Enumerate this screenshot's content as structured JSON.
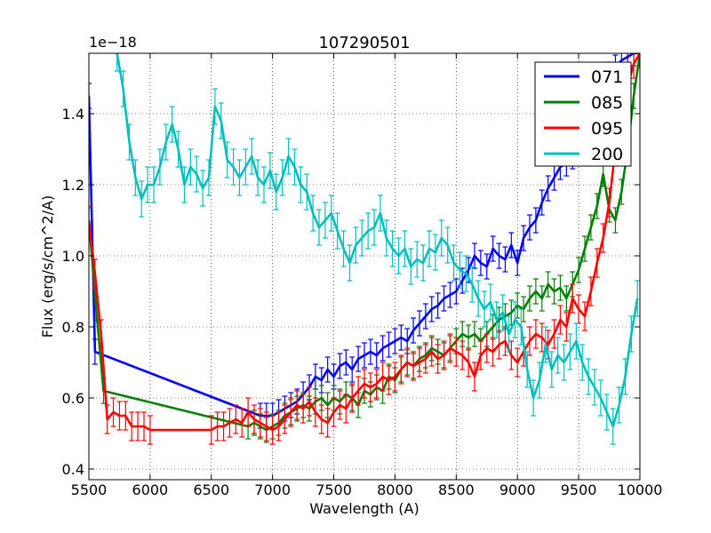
{
  "chart_data": {
    "type": "line",
    "title": "107290501",
    "xlabel": "Wavelength (A)",
    "ylabel": "Flux (erg/s/cm^2/A)",
    "y_offset_label": "1e−18",
    "xlim": [
      5500,
      10000
    ],
    "ylim": [
      0.37,
      1.57
    ],
    "x_ticks": [
      5500,
      6000,
      6500,
      7000,
      7500,
      8000,
      8500,
      9000,
      9500,
      10000
    ],
    "y_ticks": [
      0.4,
      0.6,
      0.8,
      1.0,
      1.2,
      1.4
    ],
    "grid": true,
    "legend_position": "top-right",
    "series": [
      {
        "name": "071",
        "color": "#0000ff",
        "x": [
          5500,
          5550,
          6900,
          6950,
          7000,
          7050,
          7100,
          7150,
          7200,
          7250,
          7300,
          7350,
          7400,
          7450,
          7500,
          7550,
          7600,
          7650,
          7700,
          7750,
          7800,
          7850,
          7900,
          7950,
          8000,
          8050,
          8100,
          8150,
          8200,
          8250,
          8300,
          8350,
          8400,
          8450,
          8500,
          8550,
          8600,
          8650,
          8700,
          8750,
          8800,
          8850,
          8900,
          8950,
          9000,
          9050,
          9100,
          9150,
          9200,
          9250,
          9300,
          9350,
          9400,
          9450,
          9500,
          9550,
          9600,
          9650,
          9700,
          9750,
          9800,
          9850,
          9900,
          9950,
          10000
        ],
        "y": [
          1.45,
          0.73,
          0.55,
          0.55,
          0.55,
          0.56,
          0.57,
          0.58,
          0.59,
          0.61,
          0.63,
          0.66,
          0.65,
          0.68,
          0.66,
          0.69,
          0.7,
          0.68,
          0.71,
          0.72,
          0.73,
          0.72,
          0.74,
          0.75,
          0.76,
          0.77,
          0.76,
          0.79,
          0.81,
          0.83,
          0.85,
          0.86,
          0.88,
          0.89,
          0.9,
          0.93,
          0.96,
          1.0,
          0.98,
          0.97,
          1.02,
          1.0,
          0.99,
          1.03,
          0.98,
          1.05,
          1.08,
          1.1,
          1.15,
          1.19,
          1.22,
          1.25,
          1.26,
          1.28,
          1.32,
          1.36,
          1.4,
          1.44,
          1.48,
          1.51,
          1.53,
          1.55,
          1.56,
          1.57,
          1.57
        ],
        "err": 0.035
      },
      {
        "name": "085",
        "color": "#008000",
        "x": [
          5500,
          5560,
          5620,
          6800,
          6850,
          6900,
          6950,
          7000,
          7050,
          7100,
          7150,
          7200,
          7250,
          7300,
          7350,
          7400,
          7450,
          7500,
          7550,
          7600,
          7650,
          7700,
          7750,
          7800,
          7850,
          7900,
          7950,
          8000,
          8050,
          8100,
          8150,
          8200,
          8250,
          8300,
          8350,
          8400,
          8450,
          8500,
          8550,
          8600,
          8650,
          8700,
          8750,
          8800,
          8850,
          8900,
          8950,
          9000,
          9050,
          9100,
          9150,
          9200,
          9250,
          9300,
          9350,
          9400,
          9450,
          9500,
          9550,
          9600,
          9650,
          9700,
          9750,
          9800,
          9850,
          9900,
          9950,
          10000
        ],
        "y": [
          1.1,
          0.85,
          0.62,
          0.52,
          0.53,
          0.52,
          0.51,
          0.52,
          0.53,
          0.55,
          0.56,
          0.57,
          0.58,
          0.57,
          0.59,
          0.6,
          0.58,
          0.6,
          0.59,
          0.61,
          0.6,
          0.58,
          0.62,
          0.61,
          0.63,
          0.62,
          0.66,
          0.65,
          0.68,
          0.7,
          0.69,
          0.71,
          0.72,
          0.74,
          0.73,
          0.72,
          0.74,
          0.76,
          0.78,
          0.77,
          0.78,
          0.76,
          0.78,
          0.8,
          0.82,
          0.83,
          0.84,
          0.86,
          0.85,
          0.88,
          0.9,
          0.88,
          0.92,
          0.9,
          0.91,
          0.88,
          0.92,
          0.96,
          1.02,
          1.08,
          1.14,
          1.23,
          1.13,
          1.1,
          1.18,
          1.3,
          1.45,
          1.57
        ],
        "err": 0.035
      },
      {
        "name": "095",
        "color": "#ff0000",
        "x": [
          5500,
          5550,
          5600,
          5650,
          5700,
          5750,
          5800,
          5850,
          5900,
          5950,
          6000,
          6500,
          6550,
          6600,
          6650,
          6700,
          6750,
          6800,
          6850,
          6900,
          6950,
          7000,
          7050,
          7100,
          7150,
          7200,
          7250,
          7300,
          7350,
          7400,
          7450,
          7500,
          7550,
          7600,
          7650,
          7700,
          7750,
          7800,
          7850,
          7900,
          7950,
          8000,
          8050,
          8100,
          8150,
          8200,
          8250,
          8300,
          8350,
          8400,
          8450,
          8500,
          8550,
          8600,
          8650,
          8700,
          8750,
          8800,
          8850,
          8900,
          8950,
          9000,
          9050,
          9100,
          9150,
          9200,
          9250,
          9300,
          9350,
          9400,
          9450,
          9500,
          9550,
          9600,
          9650,
          9700,
          9750,
          9800,
          9850,
          9900,
          9950,
          10000
        ],
        "y": [
          1.1,
          0.95,
          0.78,
          0.54,
          0.56,
          0.55,
          0.55,
          0.52,
          0.52,
          0.52,
          0.51,
          0.51,
          0.52,
          0.52,
          0.53,
          0.54,
          0.53,
          0.56,
          0.54,
          0.53,
          0.52,
          0.51,
          0.52,
          0.54,
          0.56,
          0.58,
          0.57,
          0.59,
          0.56,
          0.54,
          0.53,
          0.56,
          0.58,
          0.57,
          0.6,
          0.62,
          0.64,
          0.63,
          0.64,
          0.66,
          0.65,
          0.66,
          0.68,
          0.7,
          0.69,
          0.7,
          0.71,
          0.73,
          0.71,
          0.72,
          0.74,
          0.73,
          0.72,
          0.7,
          0.66,
          0.72,
          0.74,
          0.73,
          0.75,
          0.76,
          0.72,
          0.7,
          0.73,
          0.76,
          0.78,
          0.77,
          0.75,
          0.78,
          0.82,
          0.8,
          0.88,
          0.85,
          0.83,
          0.9,
          0.98,
          1.05,
          1.15,
          1.3,
          1.4,
          1.48,
          1.54,
          1.57
        ],
        "err": 0.04
      },
      {
        "name": "200",
        "color": "#00bfbf",
        "x": [
          5730,
          5780,
          5830,
          5880,
          5930,
          5980,
          6030,
          6080,
          6130,
          6180,
          6230,
          6280,
          6330,
          6380,
          6430,
          6480,
          6530,
          6580,
          6630,
          6680,
          6730,
          6780,
          6830,
          6880,
          6930,
          6980,
          7030,
          7080,
          7130,
          7180,
          7230,
          7280,
          7330,
          7380,
          7430,
          7480,
          7530,
          7580,
          7630,
          7680,
          7730,
          7780,
          7830,
          7880,
          7930,
          7980,
          8030,
          8080,
          8130,
          8180,
          8230,
          8280,
          8330,
          8380,
          8430,
          8480,
          8530,
          8580,
          8630,
          8680,
          8730,
          8780,
          8830,
          8880,
          8930,
          8980,
          9030,
          9080,
          9130,
          9180,
          9230,
          9280,
          9330,
          9380,
          9430,
          9480,
          9530,
          9580,
          9630,
          9680,
          9730,
          9780,
          9830,
          9880,
          9930,
          9980
        ],
        "y": [
          1.57,
          1.47,
          1.32,
          1.22,
          1.16,
          1.2,
          1.2,
          1.25,
          1.32,
          1.37,
          1.3,
          1.2,
          1.25,
          1.23,
          1.19,
          1.22,
          1.42,
          1.38,
          1.27,
          1.25,
          1.22,
          1.25,
          1.28,
          1.22,
          1.2,
          1.24,
          1.18,
          1.22,
          1.28,
          1.25,
          1.2,
          1.18,
          1.12,
          1.08,
          1.1,
          1.12,
          1.07,
          1.02,
          0.98,
          1.03,
          1.05,
          1.07,
          1.08,
          1.12,
          1.05,
          1.02,
          1.0,
          1.02,
          0.97,
          0.99,
          0.98,
          1.02,
          1.01,
          1.05,
          1.03,
          0.98,
          0.96,
          0.95,
          0.92,
          0.88,
          0.85,
          0.87,
          0.82,
          0.84,
          0.78,
          0.82,
          0.8,
          0.68,
          0.6,
          0.65,
          0.75,
          0.68,
          0.72,
          0.7,
          0.73,
          0.76,
          0.7,
          0.66,
          0.63,
          0.6,
          0.56,
          0.52,
          0.58,
          0.66,
          0.78,
          0.88
        ],
        "err": 0.05
      }
    ]
  }
}
